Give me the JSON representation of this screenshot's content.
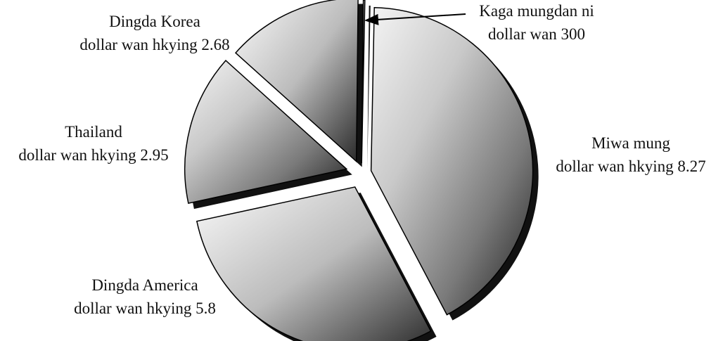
{
  "chart_data": {
    "type": "pie",
    "title": "",
    "slices": [
      {
        "label": "Miwa mung",
        "value_text": "dollar wan hkying 8.27",
        "value": 8.27
      },
      {
        "label": "Dingda America",
        "value_text": "dollar wan hkying 5.8",
        "value": 5.8
      },
      {
        "label": "Thailand",
        "value_text": "dollar wan hkying 2.95",
        "value": 2.95
      },
      {
        "label": "Dingda Korea",
        "value_text": "dollar wan hkying 2.68",
        "value": 2.68
      },
      {
        "label": "Kaga mungdan ni",
        "value_text": "dollar wan 300",
        "value": 0.03
      }
    ],
    "style": {
      "shading": "gray-gradient-3d",
      "exploded": true,
      "stroke": "#000000"
    }
  }
}
